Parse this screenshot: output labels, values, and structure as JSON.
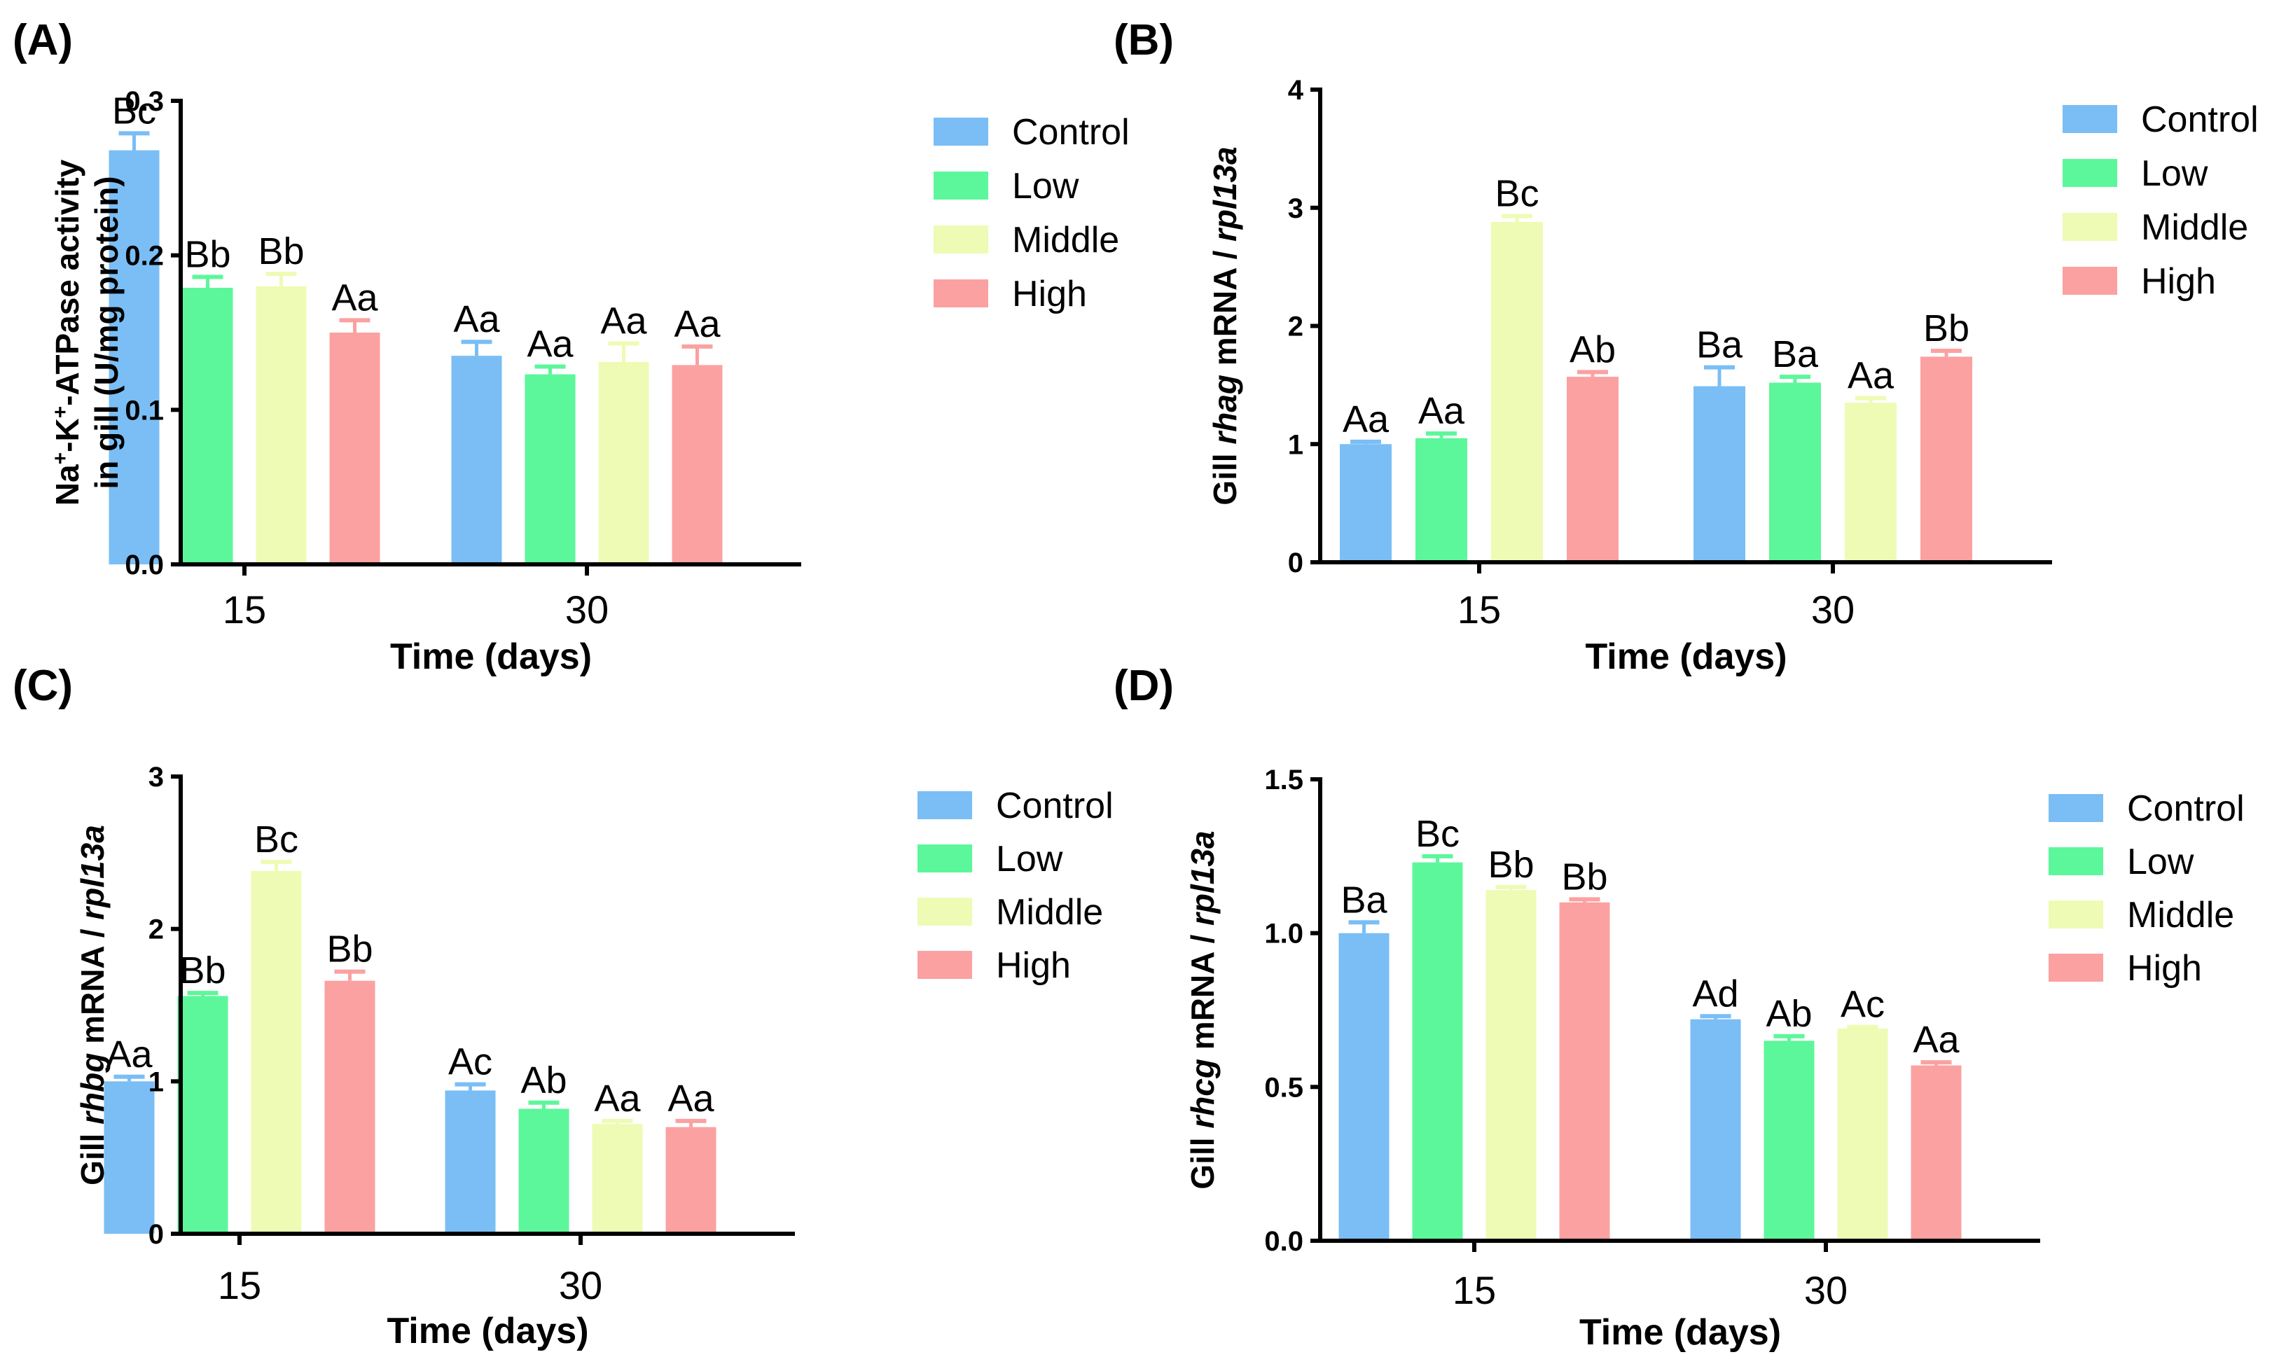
{
  "chart_data": [
    {
      "type": "bar",
      "panel": "(A)",
      "ylabel_parts": [
        {
          "text": "Na",
          "style": "normal",
          "sup": false
        },
        {
          "text": "+",
          "style": "normal",
          "sup": true
        },
        {
          "text": "-K",
          "style": "normal",
          "sup": false
        },
        {
          "text": "+",
          "style": "normal",
          "sup": true
        },
        {
          "text": "-ATPase activity",
          "style": "normal",
          "sup": false
        }
      ],
      "ylabel_line2": "in gill (U/mg protein)",
      "xlabel": "Time (days)",
      "categories": [
        "15",
        "30"
      ],
      "ylim": [
        0,
        0.3
      ],
      "yticks": [
        0,
        0.1,
        0.2,
        0.3
      ],
      "ytick_labels": [
        "0.0",
        "0.1",
        "0.2",
        "0.3"
      ],
      "series": [
        {
          "name": "Control",
          "color": "#7ABEF5",
          "values": [
            0.268,
            0.135
          ],
          "errors": [
            0.011,
            0.009
          ],
          "labels": [
            "Bc",
            "Aa"
          ]
        },
        {
          "name": "Low",
          "color": "#5CF79A",
          "values": [
            0.179,
            0.123
          ],
          "errors": [
            0.007,
            0.005
          ],
          "labels": [
            "Bb",
            "Aa"
          ]
        },
        {
          "name": "Middle",
          "color": "#EEFBB4",
          "values": [
            0.18,
            0.131
          ],
          "errors": [
            0.008,
            0.012
          ],
          "labels": [
            "Bb",
            "Aa"
          ]
        },
        {
          "name": "High",
          "color": "#FBA1A1",
          "values": [
            0.15,
            0.129
          ],
          "errors": [
            0.008,
            0.012
          ],
          "labels": [
            "Aa",
            "Aa"
          ]
        }
      ],
      "legend": [
        "Control",
        "Low",
        "Middle",
        "High"
      ]
    },
    {
      "type": "bar",
      "panel": "(B)",
      "ylabel_parts": [
        {
          "text": "Gill ",
          "style": "normal",
          "sup": false
        },
        {
          "text": "rhag",
          "style": "italic",
          "sup": false
        },
        {
          "text": " mRNA / ",
          "style": "normal",
          "sup": false
        },
        {
          "text": "rpl13a",
          "style": "italic",
          "sup": false
        }
      ],
      "xlabel": "Time (days)",
      "categories": [
        "15",
        "30"
      ],
      "ylim": [
        0,
        4
      ],
      "yticks": [
        0,
        1,
        2,
        3,
        4
      ],
      "ytick_labels": [
        "0",
        "1",
        "2",
        "3",
        "4"
      ],
      "series": [
        {
          "name": "Control",
          "color": "#7ABEF5",
          "values": [
            1.0,
            1.49
          ],
          "errors": [
            0.02,
            0.16
          ],
          "labels": [
            "Aa",
            "Ba"
          ]
        },
        {
          "name": "Low",
          "color": "#5CF79A",
          "values": [
            1.05,
            1.52
          ],
          "errors": [
            0.04,
            0.05
          ],
          "labels": [
            "Aa",
            "Ba"
          ]
        },
        {
          "name": "Middle",
          "color": "#EEFBB4",
          "values": [
            2.88,
            1.35
          ],
          "errors": [
            0.05,
            0.04
          ],
          "labels": [
            "Bc",
            "Aa"
          ]
        },
        {
          "name": "High",
          "color": "#FBA1A1",
          "values": [
            1.57,
            1.74
          ],
          "errors": [
            0.04,
            0.05
          ],
          "labels": [
            "Ab",
            "Bb"
          ]
        }
      ],
      "legend": [
        "Control",
        "Low",
        "Middle",
        "High"
      ]
    },
    {
      "type": "bar",
      "panel": "(C)",
      "ylabel_parts": [
        {
          "text": "Gill ",
          "style": "normal",
          "sup": false
        },
        {
          "text": "rhbg",
          "style": "italic",
          "sup": false
        },
        {
          "text": " mRNA / ",
          "style": "normal",
          "sup": false
        },
        {
          "text": "rpl13a",
          "style": "italic",
          "sup": false
        }
      ],
      "xlabel": "Time (days)",
      "categories": [
        "15",
        "30"
      ],
      "ylim": [
        0,
        3
      ],
      "yticks": [
        0,
        1,
        2,
        3
      ],
      "ytick_labels": [
        "0",
        "1",
        "2",
        "3"
      ],
      "series": [
        {
          "name": "Control",
          "color": "#7ABEF5",
          "values": [
            1.0,
            0.94
          ],
          "errors": [
            0.03,
            0.04
          ],
          "labels": [
            "Aa",
            "Ac"
          ]
        },
        {
          "name": "Low",
          "color": "#5CF79A",
          "values": [
            1.56,
            0.82
          ],
          "errors": [
            0.02,
            0.04
          ],
          "labels": [
            "Bb",
            "Ab"
          ]
        },
        {
          "name": "Middle",
          "color": "#EEFBB4",
          "values": [
            2.38,
            0.72
          ],
          "errors": [
            0.06,
            0.02
          ],
          "labels": [
            "Bc",
            "Aa"
          ]
        },
        {
          "name": "High",
          "color": "#FBA1A1",
          "values": [
            1.66,
            0.7
          ],
          "errors": [
            0.06,
            0.04
          ],
          "labels": [
            "Bb",
            "Aa"
          ]
        }
      ],
      "legend": [
        "Control",
        "Low",
        "Middle",
        "High"
      ]
    },
    {
      "type": "bar",
      "panel": "(D)",
      "ylabel_parts": [
        {
          "text": "Gill ",
          "style": "normal",
          "sup": false
        },
        {
          "text": "rhcg",
          "style": "italic",
          "sup": false
        },
        {
          "text": " mRNA / ",
          "style": "normal",
          "sup": false
        },
        {
          "text": "rpl13a",
          "style": "italic",
          "sup": false
        }
      ],
      "xlabel": "Time (days)",
      "categories": [
        "15",
        "30"
      ],
      "ylim": [
        0,
        1.5
      ],
      "yticks": [
        0,
        0.5,
        1.0,
        1.5
      ],
      "ytick_labels": [
        "0.0",
        "0.5",
        "1.0",
        "1.5"
      ],
      "series": [
        {
          "name": "Control",
          "color": "#7ABEF5",
          "values": [
            1.0,
            0.72
          ],
          "errors": [
            0.035,
            0.01
          ],
          "labels": [
            "Ba",
            "Ad"
          ]
        },
        {
          "name": "Low",
          "color": "#5CF79A",
          "values": [
            1.23,
            0.65
          ],
          "errors": [
            0.02,
            0.015
          ],
          "labels": [
            "Bc",
            "Ab"
          ]
        },
        {
          "name": "Middle",
          "color": "#EEFBB4",
          "values": [
            1.14,
            0.69
          ],
          "errors": [
            0.01,
            0.005
          ],
          "labels": [
            "Bb",
            "Ac"
          ]
        },
        {
          "name": "High",
          "color": "#FBA1A1",
          "values": [
            1.1,
            0.57
          ],
          "errors": [
            0.01,
            0.01
          ],
          "labels": [
            "Bb",
            "Aa"
          ]
        }
      ],
      "legend": [
        "Control",
        "Low",
        "Middle",
        "High"
      ]
    }
  ]
}
